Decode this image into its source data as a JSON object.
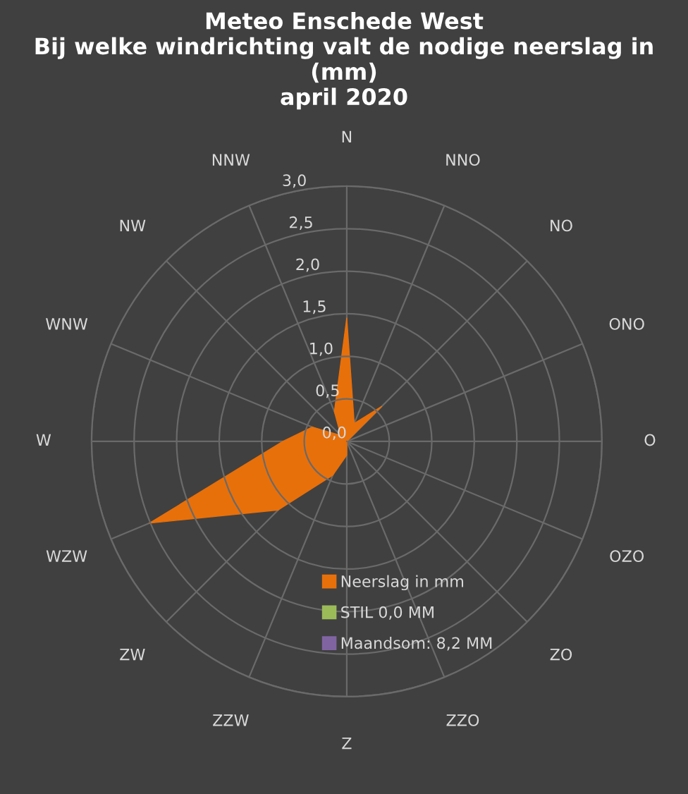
{
  "chart_data": {
    "type": "radar",
    "title": "Meteo Enschede West\nBij welke windrichting valt de nodige neerslag in (mm)\napril 2020",
    "categories": [
      "N",
      "NNO",
      "NO",
      "ONO",
      "O",
      "OZO",
      "ZO",
      "ZZO",
      "Z",
      "ZZW",
      "ZW",
      "WZW",
      "W",
      "WNW",
      "NW",
      "NNW"
    ],
    "series": [
      {
        "name": "Neerslag in mm",
        "color": "#e8700a",
        "values": [
          1.45,
          0.23,
          0.58,
          0,
          0,
          0,
          0,
          0,
          0.16,
          0.43,
          1.14,
          2.51,
          0.75,
          0.44,
          0.1,
          0.38
        ]
      }
    ],
    "annotations": [
      "STIL 0,0 MM",
      "Maandsom: 8,2 MM"
    ],
    "ylim": [
      0,
      3
    ],
    "yticks": [
      {
        "value": 0,
        "label": "0,0"
      },
      {
        "value": 0.5,
        "label": "0,5"
      },
      {
        "value": 1,
        "label": "1,0"
      },
      {
        "value": 1.5,
        "label": "1,5"
      },
      {
        "value": 2,
        "label": "2,0"
      },
      {
        "value": 2.5,
        "label": "2,5"
      },
      {
        "value": 3,
        "label": "3,0"
      }
    ],
    "grid": true,
    "legend": "bottom"
  }
}
